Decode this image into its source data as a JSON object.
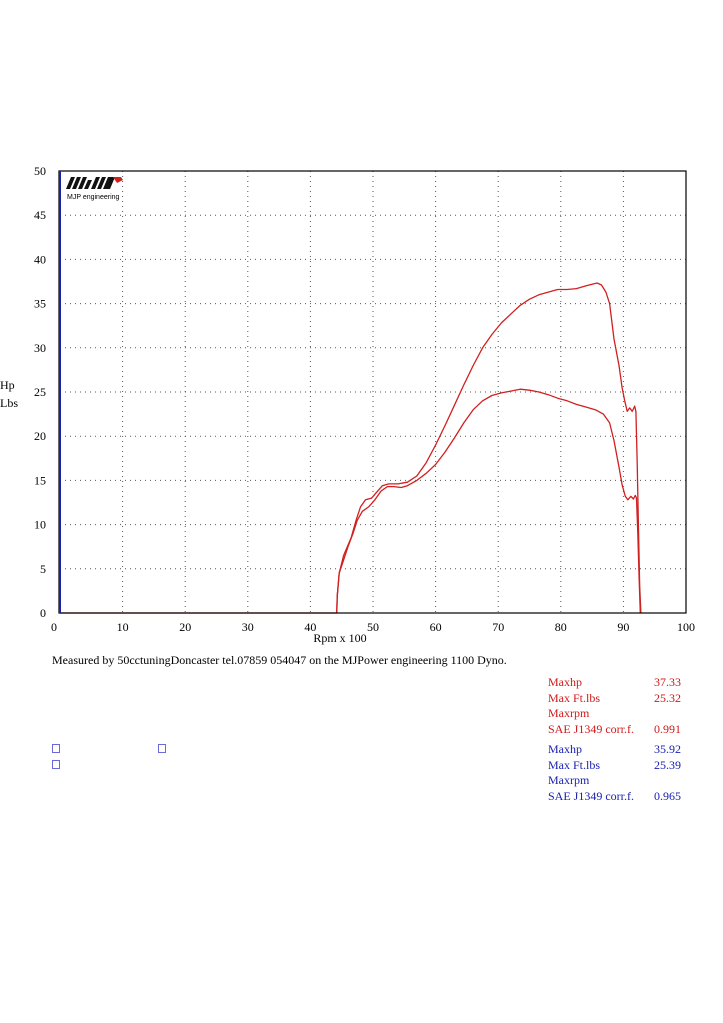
{
  "chart_data": {
    "type": "line",
    "xlabel": "Rpm x 100",
    "ylabel": [
      "Hp",
      "Lbs"
    ],
    "xlim": [
      0,
      100
    ],
    "ylim": [
      0,
      50
    ],
    "xticks": [
      0,
      10,
      20,
      30,
      40,
      50,
      60,
      70,
      80,
      90,
      100
    ],
    "yticks": [
      0,
      5,
      10,
      15,
      20,
      25,
      30,
      35,
      40,
      45,
      50
    ],
    "grid": true,
    "series": [
      {
        "color": "#d02020",
        "points": [
          [
            0,
            0
          ],
          [
            44.2,
            0
          ],
          [
            44.3,
            2
          ],
          [
            44.6,
            4.5
          ],
          [
            45.3,
            6.5
          ],
          [
            46.5,
            8.5
          ],
          [
            47.3,
            10.5
          ],
          [
            48,
            12
          ],
          [
            48.8,
            12.8
          ],
          [
            49.8,
            13
          ],
          [
            50.5,
            13.6
          ],
          [
            51.5,
            14.4
          ],
          [
            52.5,
            14.6
          ],
          [
            54,
            14.6
          ],
          [
            55.5,
            14.8
          ],
          [
            57,
            15.5
          ],
          [
            58.5,
            17
          ],
          [
            60,
            19
          ],
          [
            61.5,
            21.2
          ],
          [
            63,
            23.5
          ],
          [
            64.5,
            25.8
          ],
          [
            66,
            28
          ],
          [
            67.5,
            30
          ],
          [
            69,
            31.5
          ],
          [
            70.5,
            32.8
          ],
          [
            72,
            33.8
          ],
          [
            73.5,
            34.8
          ],
          [
            75,
            35.5
          ],
          [
            76.5,
            36
          ],
          [
            78,
            36.3
          ],
          [
            79.5,
            36.6
          ],
          [
            81,
            36.6
          ],
          [
            82.5,
            36.7
          ],
          [
            84,
            37
          ],
          [
            85,
            37.2
          ],
          [
            85.8,
            37.33
          ],
          [
            86.5,
            37.1
          ],
          [
            87.2,
            36.3
          ],
          [
            87.8,
            35
          ],
          [
            88.5,
            31
          ],
          [
            89.3,
            28
          ],
          [
            89.8,
            25.5
          ],
          [
            90.2,
            24
          ],
          [
            90.6,
            22.8
          ],
          [
            91,
            23.2
          ],
          [
            91.4,
            22.8
          ],
          [
            91.8,
            23.4
          ],
          [
            92,
            22.8
          ],
          [
            92.2,
            17
          ],
          [
            92.4,
            10
          ],
          [
            92.6,
            3
          ],
          [
            92.8,
            0
          ]
        ]
      },
      {
        "color": "#d02020",
        "points": [
          [
            44.2,
            0
          ],
          [
            44.3,
            2
          ],
          [
            44.6,
            4.5
          ],
          [
            45.3,
            6
          ],
          [
            46,
            7.5
          ],
          [
            46.8,
            9
          ],
          [
            47.5,
            10.5
          ],
          [
            48.3,
            11.5
          ],
          [
            49.3,
            12
          ],
          [
            50.3,
            12.8
          ],
          [
            51.3,
            13.8
          ],
          [
            52.3,
            14.3
          ],
          [
            53.3,
            14.3
          ],
          [
            54.5,
            14.2
          ],
          [
            55.5,
            14.4
          ],
          [
            57,
            15
          ],
          [
            58.5,
            15.8
          ],
          [
            60,
            16.8
          ],
          [
            61.5,
            18.2
          ],
          [
            63,
            19.8
          ],
          [
            64.5,
            21.5
          ],
          [
            66,
            23
          ],
          [
            67.5,
            24
          ],
          [
            69,
            24.6
          ],
          [
            70.5,
            24.9
          ],
          [
            72,
            25.1
          ],
          [
            73.5,
            25.32
          ],
          [
            75,
            25.2
          ],
          [
            76.5,
            25
          ],
          [
            78,
            24.7
          ],
          [
            79.5,
            24.3
          ],
          [
            81,
            24
          ],
          [
            82.5,
            23.6
          ],
          [
            84,
            23.3
          ],
          [
            85.5,
            23
          ],
          [
            86.8,
            22.5
          ],
          [
            87.8,
            21.5
          ],
          [
            88.5,
            19.5
          ],
          [
            89.3,
            16.5
          ],
          [
            89.8,
            14.5
          ],
          [
            90.3,
            13.2
          ],
          [
            90.7,
            12.8
          ],
          [
            91.2,
            13.2
          ],
          [
            91.6,
            12.9
          ],
          [
            91.9,
            13.3
          ],
          [
            92.1,
            13
          ],
          [
            92.3,
            9
          ],
          [
            92.5,
            4
          ],
          [
            92.7,
            0
          ]
        ]
      }
    ]
  },
  "logo": {
    "text": "MJP engineering"
  },
  "caption": "Measured by 50cctuningDoncaster tel.07859 054047 on the MJPower engineering 1100 Dyno.",
  "stats_red": [
    {
      "label": "Maxhp",
      "value": "37.33"
    },
    {
      "label": "Max Ft.lbs",
      "value": "25.32"
    },
    {
      "label": "Maxrpm",
      "value": ""
    },
    {
      "label": "SAE J1349 corr.f.",
      "value": "0.991"
    }
  ],
  "stats_blue": [
    {
      "label": "Maxhp",
      "value": "35.92"
    },
    {
      "label": "Max Ft.lbs",
      "value": "25.39"
    },
    {
      "label": "Maxrpm",
      "value": ""
    },
    {
      "label": "SAE J1349 corr.f.",
      "value": "0.965"
    }
  ],
  "colors": {
    "red": "#d01818",
    "blue": "#1a20b0",
    "curve": "#d02020",
    "axis_left": "#1a20b0"
  }
}
